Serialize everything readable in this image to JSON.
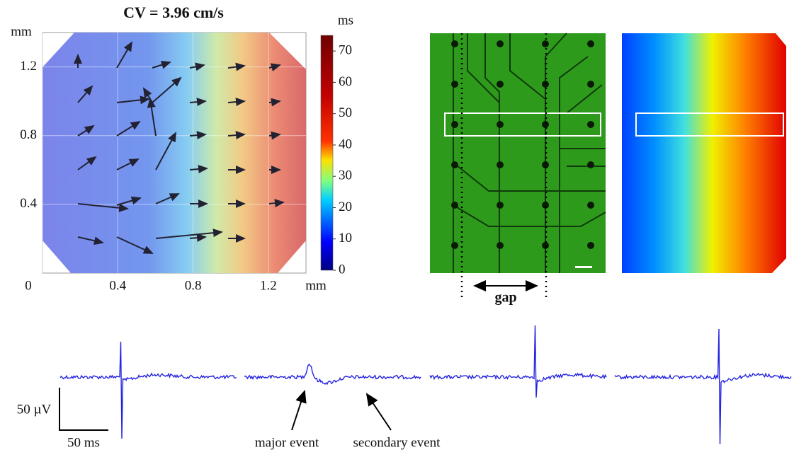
{
  "activation_map": {
    "title": "CV = 3.96 cm/s",
    "x_label": "mm",
    "y_label": "mm",
    "xlim": [
      0,
      1.4
    ],
    "ylim": [
      0,
      1.4
    ],
    "xticks": [
      0,
      0.4,
      0.8,
      1.2
    ],
    "yticks": [
      0.4,
      0.8,
      1.2
    ]
  },
  "colorbar": {
    "label": "ms",
    "lim": [
      0,
      75
    ],
    "ticks": [
      0,
      10,
      20,
      30,
      40,
      50,
      60,
      70
    ]
  },
  "image": {
    "annotation": "gap"
  },
  "traces": {
    "scale_y": "50 µV",
    "scale_x": "50 ms",
    "annotations": [
      "major event",
      "secondary event"
    ]
  }
}
